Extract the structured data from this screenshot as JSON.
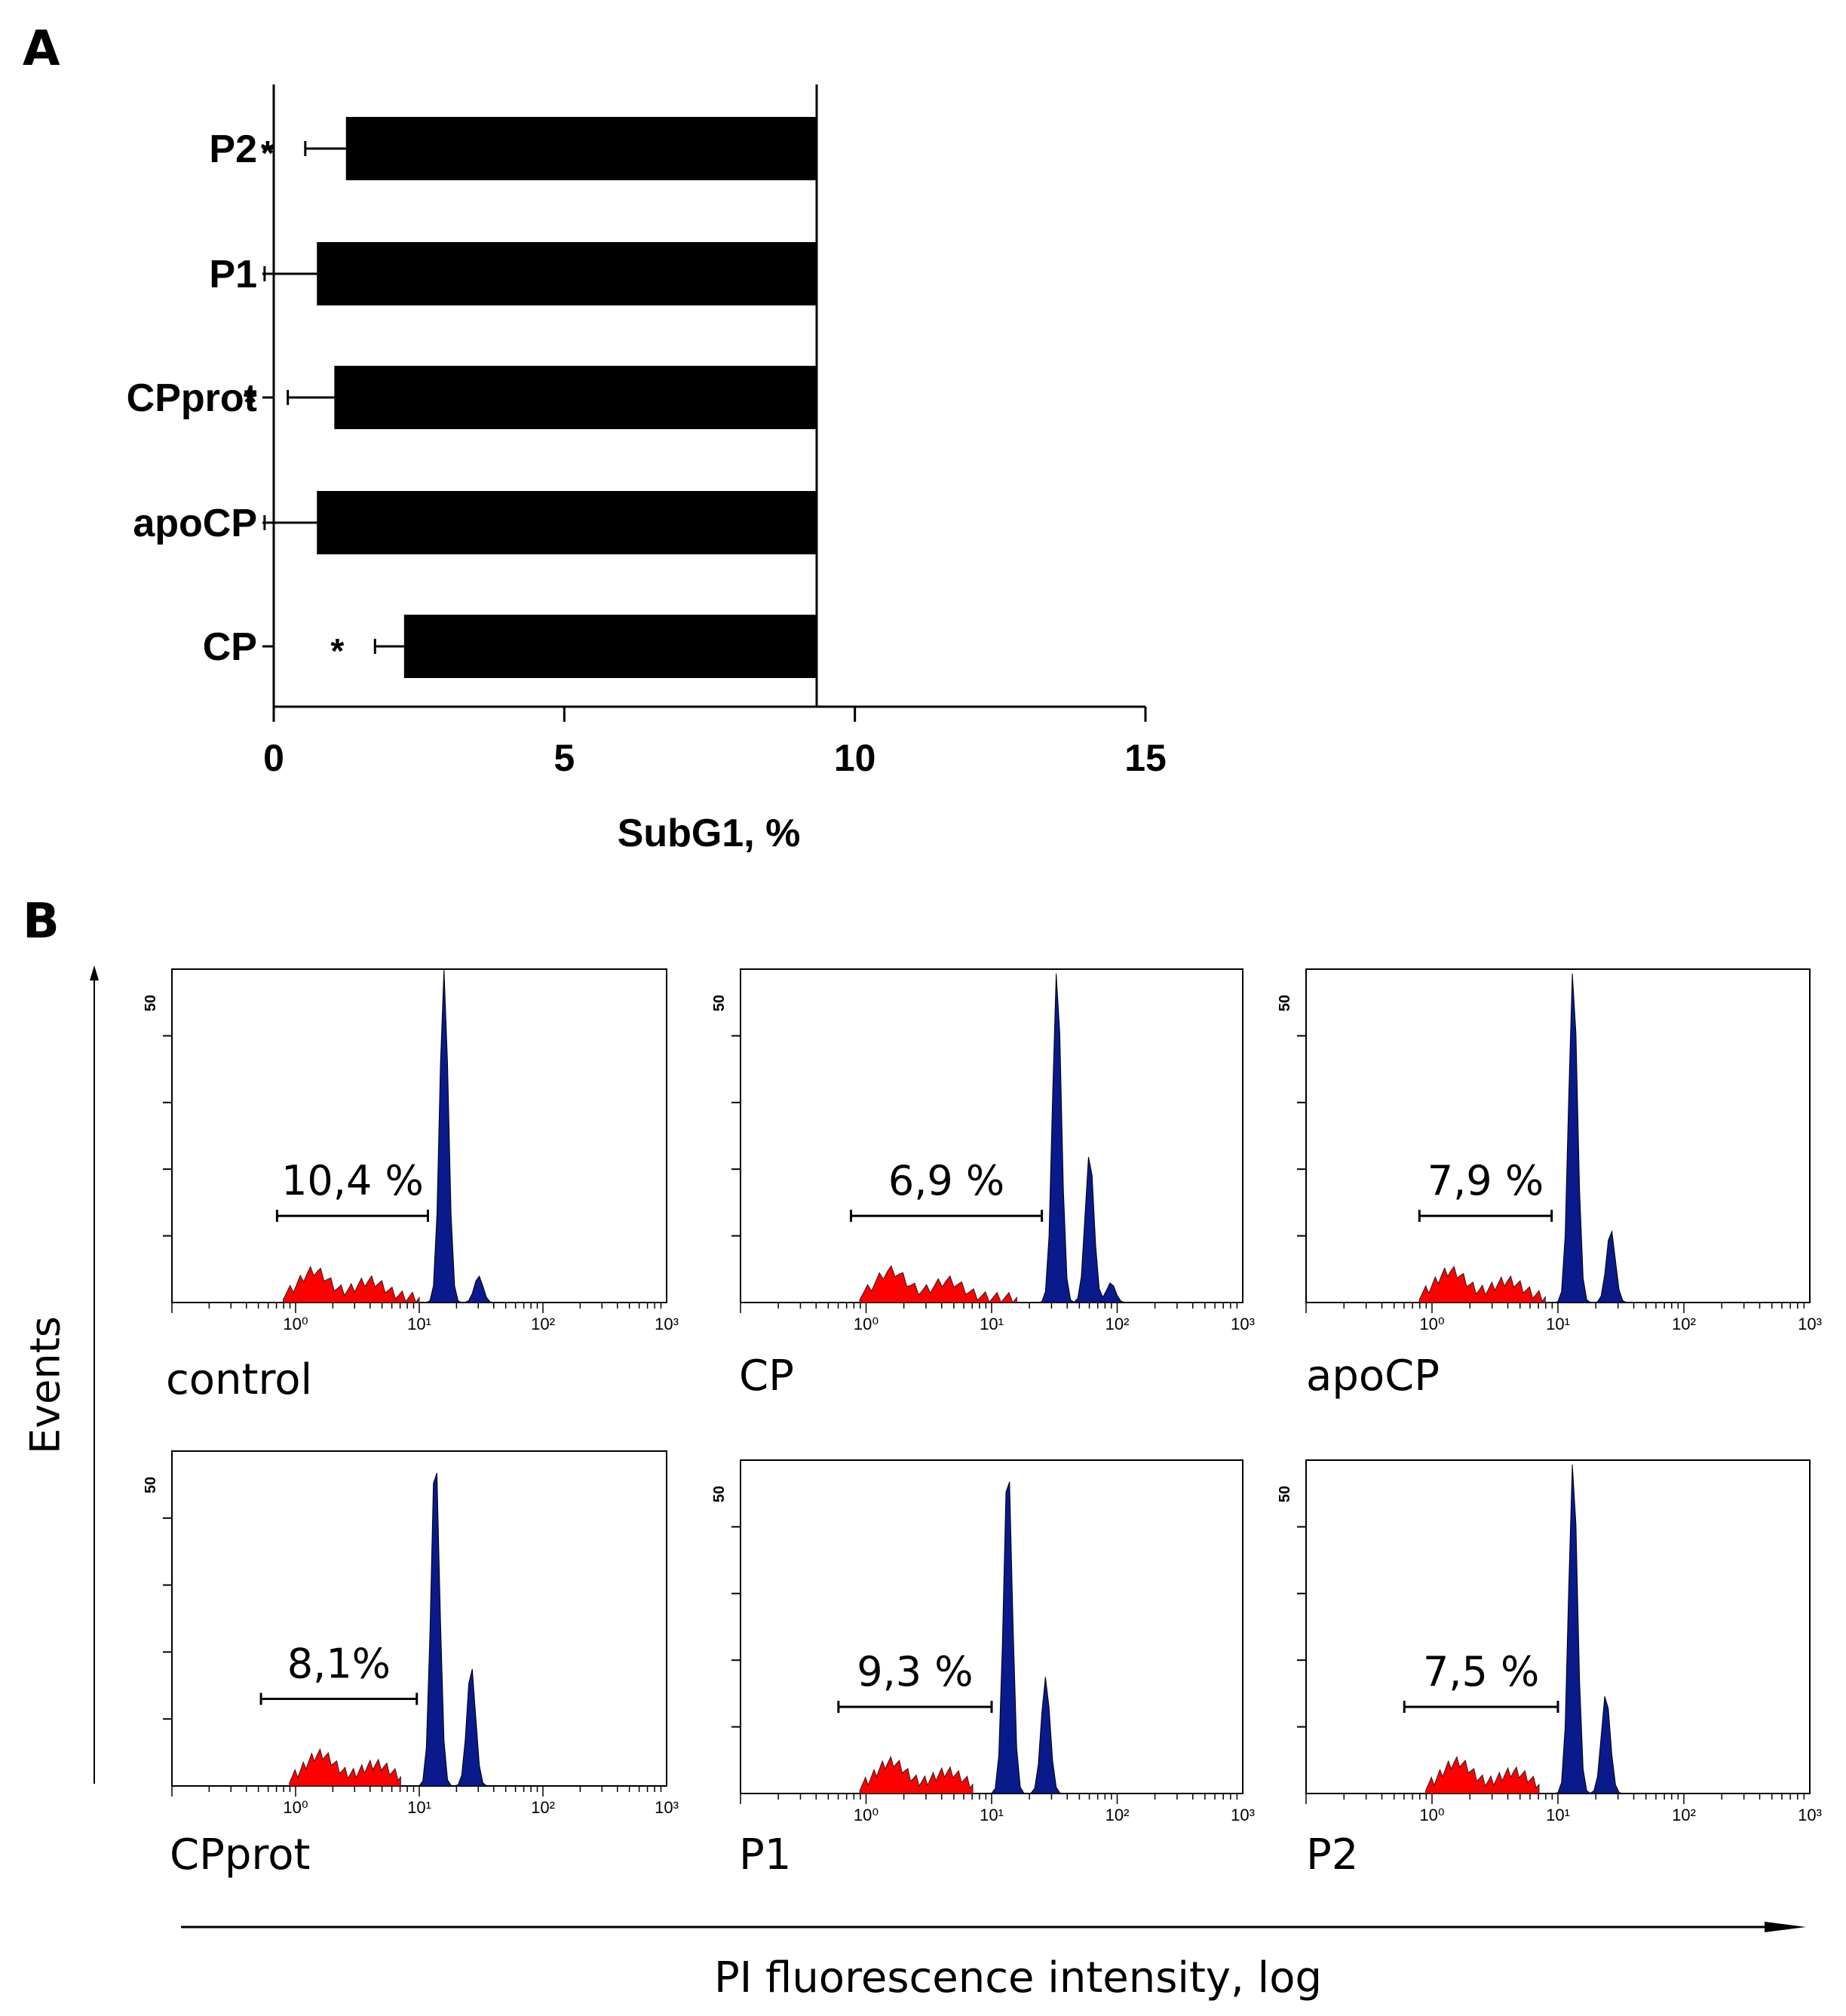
{
  "figure": {
    "panel_a_label": "A",
    "panel_b_label": "B",
    "events_label": "Events",
    "pi_label": "PI fluorescence intensity, log"
  },
  "colors": {
    "bar": "#000000",
    "subg1": "#ff0000",
    "g1_peak": "#0a1a8c",
    "axis": "#000000"
  },
  "chart_data": [
    {
      "type": "bar",
      "orientation": "horizontal",
      "title": "",
      "xlabel": "SubG1, %",
      "ylabel": "",
      "xlim": [
        0,
        15
      ],
      "xticks": [
        0,
        5,
        10,
        15
      ],
      "grid": false,
      "categories": [
        "P2",
        "P1",
        "CPprot",
        "apoCP",
        "CP"
      ],
      "values": [
        8.1,
        8.6,
        8.3,
        8.6,
        7.1
      ],
      "errors": [
        0.7,
        0.9,
        0.8,
        0.9,
        0.5
      ],
      "significance": [
        "*",
        "",
        "*",
        "",
        "*"
      ]
    },
    {
      "type": "histogram",
      "scale": "log",
      "ylabel": "Events",
      "xlabel": "PI fluorescence intensity, log",
      "ytick_label": "50",
      "xtick_labels": [
        "10⁰",
        "10¹",
        "10²",
        "10³"
      ],
      "panels": [
        {
          "label": "control",
          "subg1": "10,4 %",
          "gate": [
            -0.15,
            1.07
          ],
          "peaks": [
            {
              "pos": 1.2,
              "h": 1.0
            },
            {
              "pos": 1.48,
              "h": 0.08
            }
          ],
          "subg1_range": [
            -0.1,
            1.0
          ]
        },
        {
          "label": "CP",
          "subg1": "6,9 %",
          "gate": [
            -0.12,
            1.4
          ],
          "peaks": [
            {
              "pos": 1.52,
              "h": 1.0
            },
            {
              "pos": 1.78,
              "h": 0.45
            },
            {
              "pos": 1.95,
              "h": 0.06
            }
          ],
          "subg1_range": [
            -0.05,
            1.2
          ]
        },
        {
          "label": "apoCP",
          "subg1": "7,9 %",
          "gate": [
            -0.1,
            0.95
          ],
          "peaks": [
            {
              "pos": 1.12,
              "h": 1.0
            },
            {
              "pos": 1.42,
              "h": 0.22
            }
          ],
          "subg1_range": [
            -0.1,
            0.9
          ]
        },
        {
          "label": "CPprot",
          "subg1": "8,1%",
          "gate": [
            -0.28,
            0.98
          ],
          "peaks": [
            {
              "pos": 1.13,
              "h": 1.0
            },
            {
              "pos": 1.42,
              "h": 0.36
            }
          ],
          "subg1_range": [
            -0.05,
            0.85
          ]
        },
        {
          "label": "P1",
          "subg1": "9,3 %",
          "gate": [
            -0.22,
            1.0
          ],
          "peaks": [
            {
              "pos": 1.13,
              "h": 1.0
            },
            {
              "pos": 1.43,
              "h": 0.35
            }
          ],
          "subg1_range": [
            -0.05,
            0.85
          ]
        },
        {
          "label": "P2",
          "subg1": "7,5 %",
          "gate": [
            -0.22,
            1.0
          ],
          "peaks": [
            {
              "pos": 1.12,
              "h": 1.0
            },
            {
              "pos": 1.38,
              "h": 0.3
            }
          ],
          "subg1_range": [
            -0.05,
            0.85
          ]
        }
      ]
    }
  ]
}
